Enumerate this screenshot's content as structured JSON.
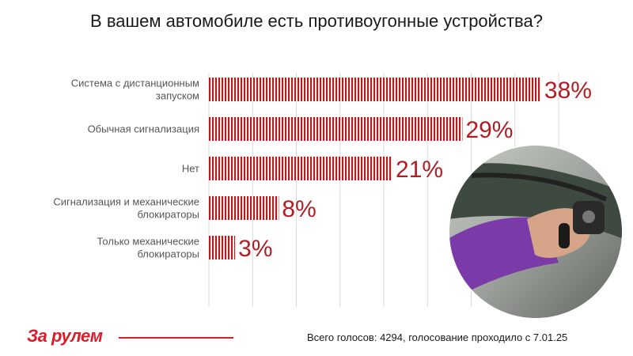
{
  "title": "В вашем автомобиле есть противоугонные устройства?",
  "footer": "Всего голосов: 4294, голосование проходило с 7.01.25",
  "logo": "За рулем",
  "colors": {
    "bar": "#b01e23",
    "label": "#b01e23",
    "logo": "#d81e2a"
  },
  "chart_data": {
    "type": "bar",
    "orientation": "horizontal",
    "categories": [
      [
        "Система с дистанционным",
        "запуском"
      ],
      [
        "Обычная сигнализация"
      ],
      [
        "Нет"
      ],
      [
        "Сигнализация и механические",
        "блокираторы"
      ],
      [
        "Только механические",
        "блокираторы"
      ]
    ],
    "values": [
      38,
      29,
      21,
      8,
      3
    ],
    "value_labels": [
      "38%",
      "29%",
      "21%",
      "8%",
      "3%"
    ],
    "xlim": [
      0,
      40
    ],
    "grid": "vertical"
  }
}
